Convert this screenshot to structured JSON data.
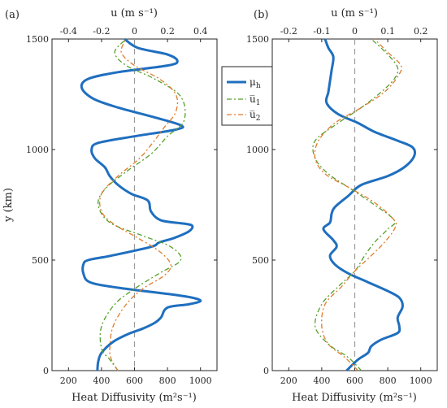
{
  "chart_data": [
    {
      "type": "line",
      "panel_label": "(a)",
      "ylabel": "y (km)",
      "xlabel_bottom": "Heat Diffusivity (m²s⁻¹)",
      "xlabel_top": "u (m s⁻¹)",
      "ylim": [
        0,
        1500
      ],
      "xlim_bottom": [
        100,
        1100
      ],
      "xlim_top": [
        -0.5,
        0.5
      ],
      "yticks": [
        "0",
        "500",
        "1000",
        "1500"
      ],
      "xticks_bottom": [
        "200",
        "400",
        "600",
        "800",
        "1000"
      ],
      "xticks_top": [
        "-0.4",
        "-0.2",
        "0",
        "0.2",
        "0.4"
      ],
      "zero_line_u": 0,
      "grid": false,
      "series": [
        {
          "name": "μ_h",
          "axis": "bottom",
          "color": "#1f6fbf",
          "style": "solid",
          "points": [
            [
              375,
              0
            ],
            [
              380,
              40
            ],
            [
              400,
              80
            ],
            [
              470,
              130
            ],
            [
              560,
              165
            ],
            [
              650,
              190
            ],
            [
              720,
              215
            ],
            [
              760,
              240
            ],
            [
              800,
              285
            ],
            [
              930,
              300
            ],
            [
              1000,
              315
            ],
            [
              950,
              330
            ],
            [
              820,
              345
            ],
            [
              500,
              375
            ],
            [
              330,
              400
            ],
            [
              290,
              440
            ],
            [
              290,
              480
            ],
            [
              320,
              500
            ],
            [
              460,
              520
            ],
            [
              700,
              560
            ],
            [
              750,
              580
            ],
            [
              840,
              600
            ],
            [
              930,
              630
            ],
            [
              950,
              655
            ],
            [
              900,
              665
            ],
            [
              760,
              680
            ],
            [
              700,
              720
            ],
            [
              680,
              770
            ],
            [
              580,
              800
            ],
            [
              500,
              840
            ],
            [
              450,
              880
            ],
            [
              420,
              920
            ],
            [
              360,
              960
            ],
            [
              340,
              1000
            ],
            [
              380,
              1030
            ],
            [
              600,
              1060
            ],
            [
              850,
              1090
            ],
            [
              880,
              1110
            ],
            [
              700,
              1150
            ],
            [
              500,
              1190
            ],
            [
              350,
              1230
            ],
            [
              280,
              1280
            ],
            [
              320,
              1320
            ],
            [
              500,
              1350
            ],
            [
              800,
              1380
            ],
            [
              860,
              1400
            ],
            [
              800,
              1430
            ],
            [
              620,
              1460
            ],
            [
              540,
              1500
            ]
          ]
        },
        {
          "name": "u̅₁",
          "axis": "top",
          "color": "#55a02a",
          "style": "dashdot",
          "points": [
            [
              -0.1,
              0
            ],
            [
              -0.15,
              50
            ],
            [
              -0.2,
              100
            ],
            [
              -0.2,
              200
            ],
            [
              -0.12,
              300
            ],
            [
              0,
              370
            ],
            [
              0.15,
              440
            ],
            [
              0.28,
              500
            ],
            [
              0.22,
              560
            ],
            [
              0.05,
              610
            ],
            [
              -0.15,
              670
            ],
            [
              -0.22,
              750
            ],
            [
              -0.18,
              820
            ],
            [
              -0.05,
              900
            ],
            [
              0.1,
              980
            ],
            [
              0.2,
              1060
            ],
            [
              0.3,
              1130
            ],
            [
              0.28,
              1240
            ],
            [
              0.12,
              1320
            ],
            [
              -0.05,
              1380
            ],
            [
              -0.12,
              1440
            ],
            [
              -0.05,
              1500
            ]
          ]
        },
        {
          "name": "u̅₂",
          "axis": "top",
          "color": "#e07b2a",
          "style": "dashdot",
          "points": [
            [
              -0.1,
              0
            ],
            [
              -0.14,
              50
            ],
            [
              -0.15,
              100
            ],
            [
              -0.13,
              200
            ],
            [
              -0.05,
              300
            ],
            [
              0.05,
              370
            ],
            [
              0.18,
              430
            ],
            [
              0.22,
              480
            ],
            [
              0.15,
              540
            ],
            [
              0.02,
              600
            ],
            [
              -0.12,
              660
            ],
            [
              -0.2,
              720
            ],
            [
              -0.2,
              800
            ],
            [
              -0.1,
              880
            ],
            [
              0.03,
              960
            ],
            [
              0.12,
              1040
            ],
            [
              0.18,
              1100
            ],
            [
              0.25,
              1170
            ],
            [
              0.25,
              1250
            ],
            [
              0.15,
              1320
            ],
            [
              0,
              1380
            ],
            [
              -0.08,
              1440
            ],
            [
              -0.05,
              1500
            ]
          ]
        }
      ]
    },
    {
      "type": "line",
      "panel_label": "(b)",
      "xlabel_bottom": "Heat Diffusivity (m²s⁻¹)",
      "xlabel_top": "u (m s⁻¹)",
      "ylim": [
        0,
        1500
      ],
      "xlim_bottom": [
        100,
        1100
      ],
      "xlim_top": [
        -0.25,
        0.25
      ],
      "yticks": [
        "0",
        "500",
        "1000",
        "1500"
      ],
      "xticks_bottom": [
        "200",
        "400",
        "600",
        "800",
        "1000"
      ],
      "xticks_top": [
        "-0.2",
        "-0.1",
        "0",
        "0.1",
        "0.2"
      ],
      "zero_line_u": 0,
      "grid": false,
      "series": [
        {
          "name": "μ_h",
          "axis": "bottom",
          "color": "#1f6fbf",
          "style": "solid",
          "points": [
            [
              550,
              0
            ],
            [
              620,
              50
            ],
            [
              680,
              80
            ],
            [
              700,
              110
            ],
            [
              760,
              140
            ],
            [
              860,
              170
            ],
            [
              870,
              200
            ],
            [
              860,
              240
            ],
            [
              890,
              290
            ],
            [
              870,
              330
            ],
            [
              800,
              360
            ],
            [
              680,
              400
            ],
            [
              560,
              440
            ],
            [
              480,
              480
            ],
            [
              450,
              520
            ],
            [
              490,
              560
            ],
            [
              470,
              590
            ],
            [
              410,
              640
            ],
            [
              450,
              670
            ],
            [
              460,
              710
            ],
            [
              480,
              740
            ],
            [
              560,
              790
            ],
            [
              640,
              840
            ],
            [
              800,
              880
            ],
            [
              900,
              920
            ],
            [
              960,
              970
            ],
            [
              950,
              1010
            ],
            [
              860,
              1040
            ],
            [
              720,
              1080
            ],
            [
              620,
              1120
            ],
            [
              500,
              1160
            ],
            [
              430,
              1210
            ],
            [
              440,
              1260
            ],
            [
              450,
              1310
            ],
            [
              460,
              1360
            ],
            [
              470,
              1420
            ],
            [
              440,
              1460
            ],
            [
              420,
              1500
            ]
          ]
        },
        {
          "name": "u̅₁",
          "axis": "top",
          "color": "#55a02a",
          "style": "dashdot",
          "points": [
            [
              0.02,
              0
            ],
            [
              -0.02,
              60
            ],
            [
              -0.08,
              120
            ],
            [
              -0.12,
              200
            ],
            [
              -0.1,
              300
            ],
            [
              -0.05,
              380
            ],
            [
              0,
              450
            ],
            [
              0.03,
              520
            ],
            [
              0.06,
              580
            ],
            [
              0.1,
              640
            ],
            [
              0.12,
              680
            ],
            [
              0.05,
              760
            ],
            [
              -0.02,
              830
            ],
            [
              -0.08,
              890
            ],
            [
              -0.12,
              960
            ],
            [
              -0.12,
              1040
            ],
            [
              -0.05,
              1120
            ],
            [
              0.02,
              1190
            ],
            [
              0.08,
              1260
            ],
            [
              0.12,
              1320
            ],
            [
              0.13,
              1370
            ],
            [
              0.1,
              1430
            ],
            [
              0.05,
              1500
            ]
          ]
        },
        {
          "name": "u̅₂",
          "axis": "top",
          "color": "#e07b2a",
          "style": "dashdot",
          "points": [
            [
              0.01,
              0
            ],
            [
              -0.03,
              60
            ],
            [
              -0.08,
              120
            ],
            [
              -0.1,
              200
            ],
            [
              -0.09,
              300
            ],
            [
              -0.04,
              380
            ],
            [
              0,
              450
            ],
            [
              0.05,
              520
            ],
            [
              0.09,
              580
            ],
            [
              0.12,
              640
            ],
            [
              0.12,
              680
            ],
            [
              0.06,
              760
            ],
            [
              -0.02,
              830
            ],
            [
              -0.09,
              890
            ],
            [
              -0.12,
              960
            ],
            [
              -0.11,
              1040
            ],
            [
              -0.06,
              1120
            ],
            [
              0.02,
              1190
            ],
            [
              0.09,
              1260
            ],
            [
              0.13,
              1330
            ],
            [
              0.14,
              1380
            ],
            [
              0.1,
              1440
            ],
            [
              0.06,
              1500
            ]
          ]
        }
      ]
    }
  ],
  "legend": {
    "placement": "between panels, top",
    "entries": [
      {
        "label": "μ",
        "sub": "h",
        "color": "#1f6fbf",
        "style": "solid"
      },
      {
        "label": "u̅",
        "sub": "1",
        "color": "#55a02a",
        "style": "dashdot"
      },
      {
        "label": "u̅",
        "sub": "2",
        "color": "#e07b2a",
        "style": "dashdot"
      }
    ]
  }
}
